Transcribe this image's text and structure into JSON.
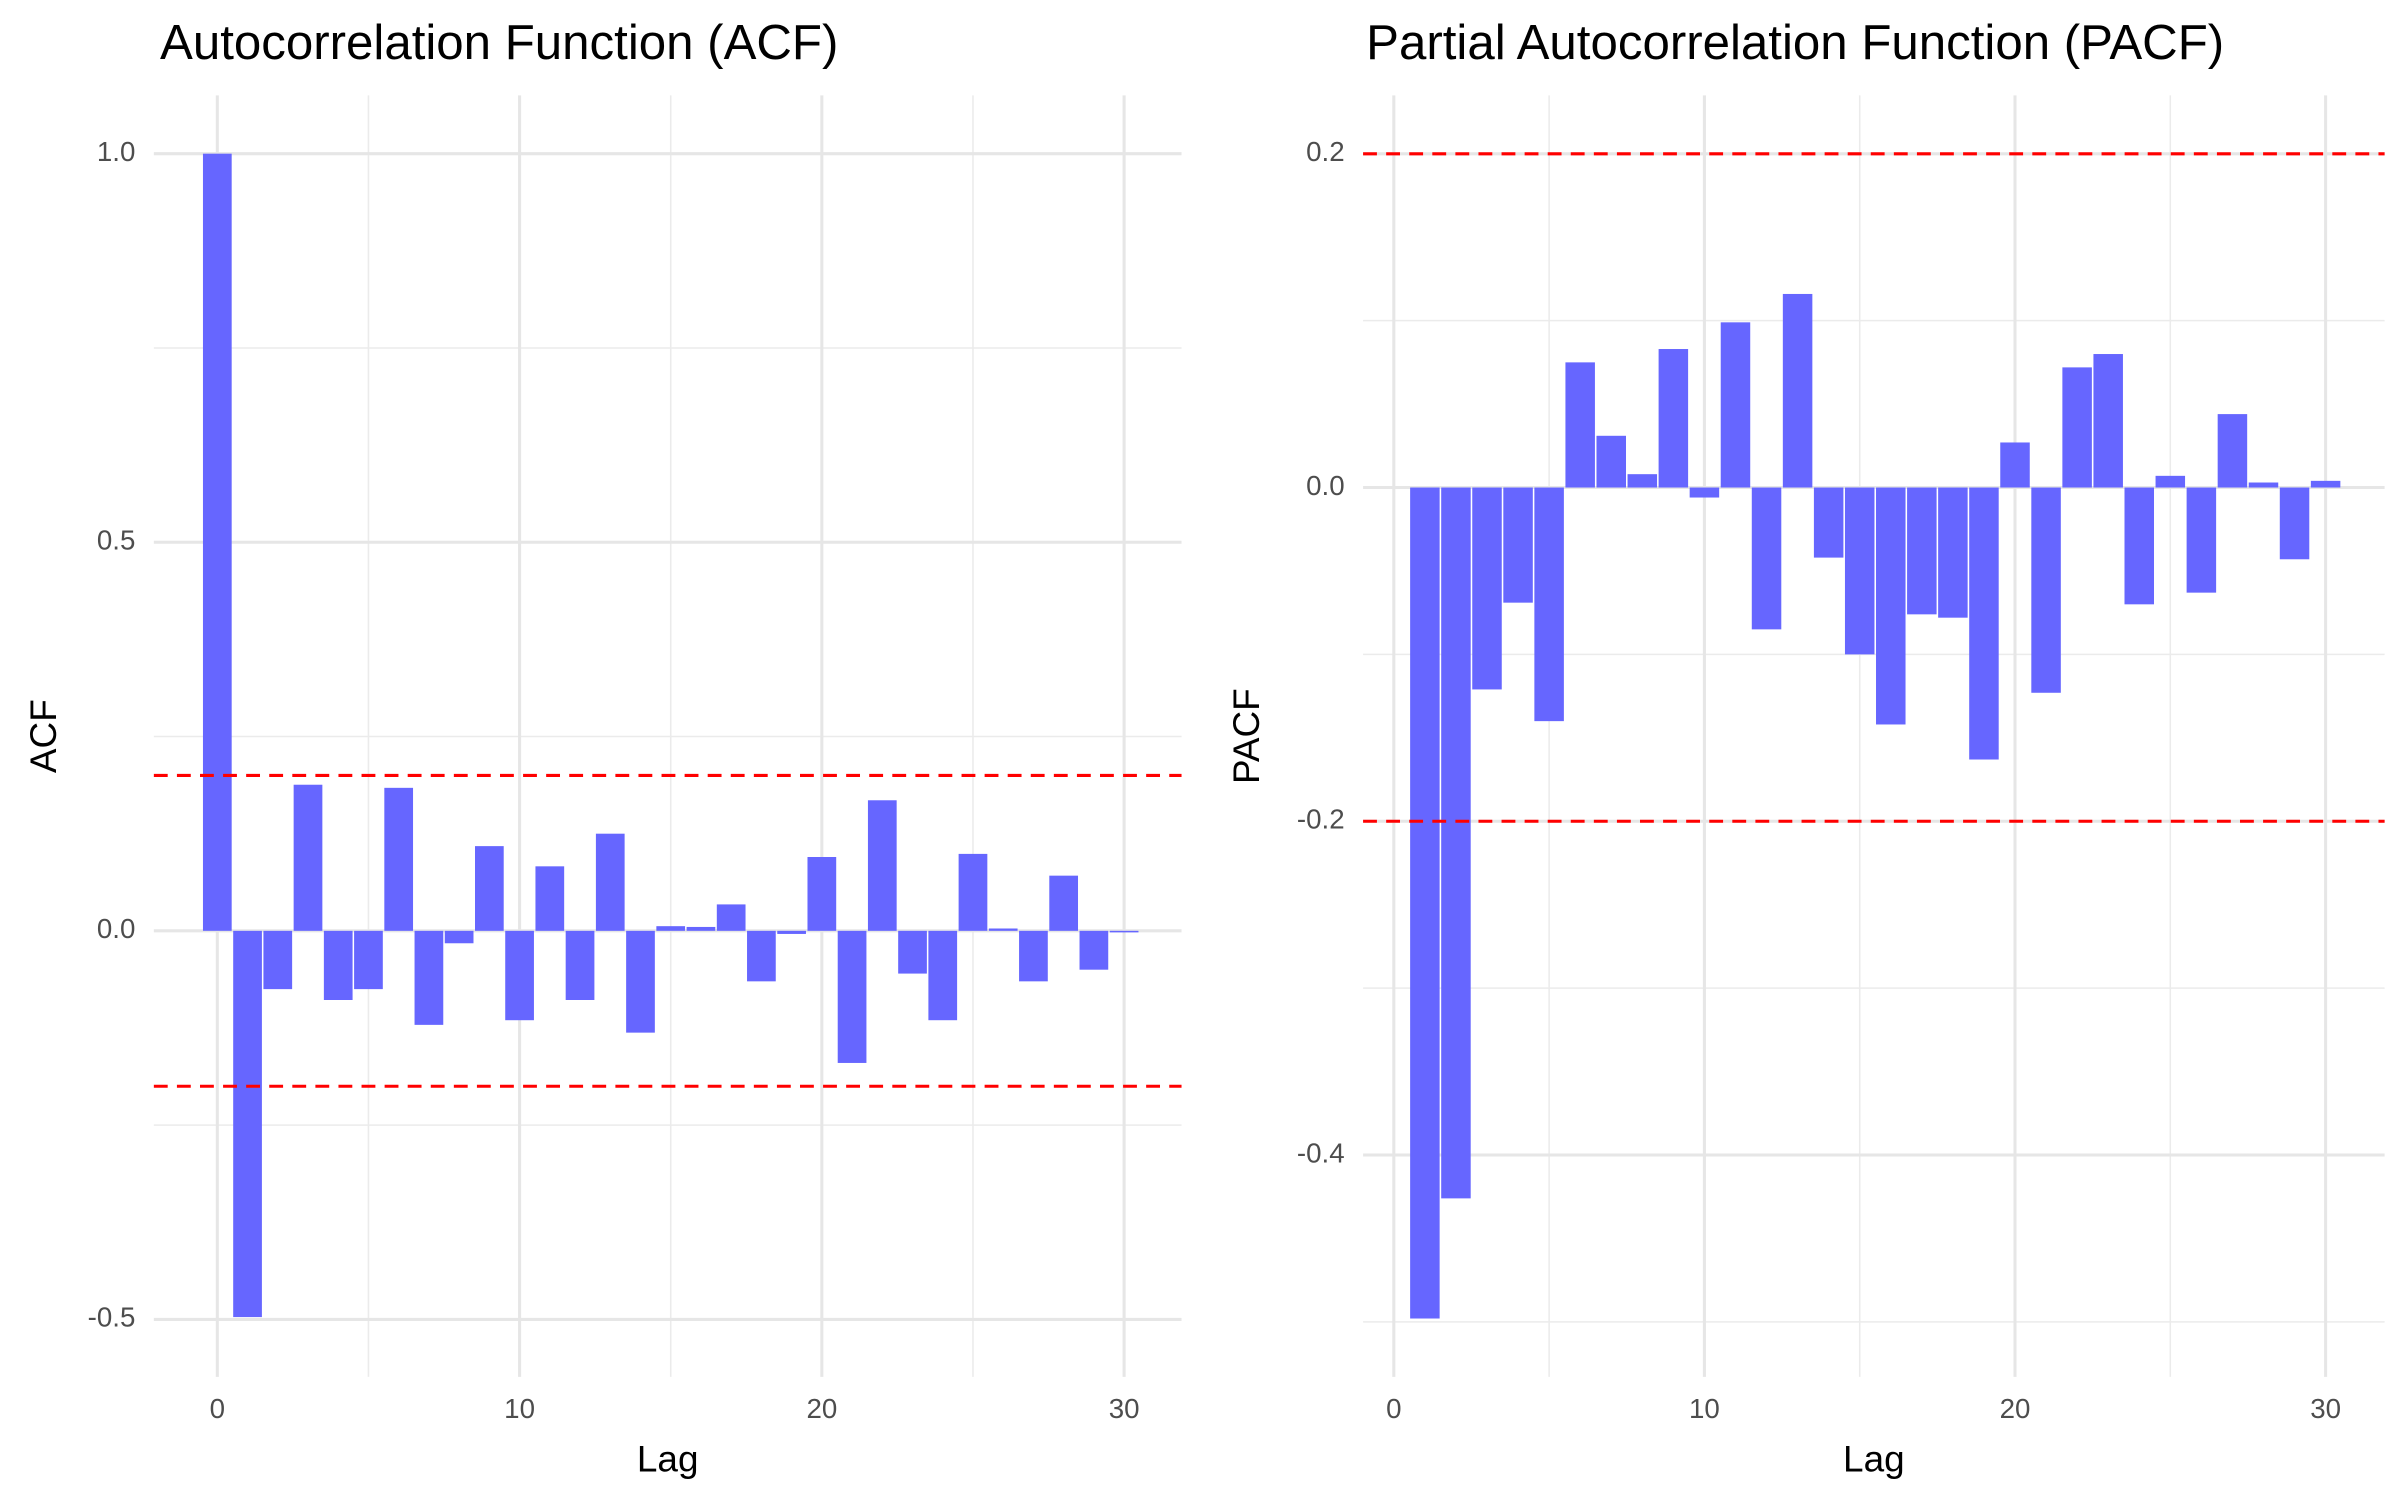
{
  "chart_data": [
    {
      "type": "bar",
      "title": "Autocorrelation Function (ACF)",
      "x_label": "Lag",
      "y_label": "ACF",
      "x": [
        0,
        1,
        2,
        3,
        4,
        5,
        6,
        7,
        8,
        9,
        10,
        11,
        12,
        13,
        14,
        15,
        16,
        17,
        18,
        19,
        20,
        21,
        22,
        23,
        24,
        25,
        26,
        27,
        28,
        29,
        30
      ],
      "values": [
        1.0,
        -0.497,
        -0.075,
        0.188,
        -0.089,
        -0.075,
        0.184,
        -0.121,
        -0.016,
        0.109,
        -0.115,
        0.083,
        -0.089,
        0.125,
        -0.131,
        0.006,
        0.005,
        0.034,
        -0.065,
        -0.004,
        0.095,
        -0.17,
        0.168,
        -0.055,
        -0.115,
        0.099,
        0.003,
        -0.065,
        0.071,
        -0.05,
        -0.002
      ],
      "color": "#6666ff",
      "xlim": [
        -2.1,
        31.9
      ],
      "xticks": [
        0,
        10,
        20,
        30
      ],
      "x_minor_grid": [
        5,
        15,
        25
      ],
      "ylim": [
        -0.574,
        1.075
      ],
      "yticks": [
        -0.5,
        {
          "value": 0,
          "label": "0.0"
        },
        0.5,
        {
          "value": 1,
          "label": "1.0"
        }
      ],
      "y_minor_grid": [
        -0.25,
        0.25,
        0.75
      ],
      "ci_lines": [
        0.2,
        -0.2
      ],
      "ci_color": "#ff0000",
      "grid": true
    },
    {
      "type": "bar",
      "title": "Partial Autocorrelation Function (PACF)",
      "x_label": "Lag",
      "y_label": "PACF",
      "x": [
        1,
        2,
        3,
        4,
        5,
        6,
        7,
        8,
        9,
        10,
        11,
        12,
        13,
        14,
        15,
        16,
        17,
        18,
        19,
        20,
        21,
        22,
        23,
        24,
        25,
        26,
        27,
        28,
        29,
        30
      ],
      "values": [
        -0.498,
        -0.426,
        -0.121,
        -0.069,
        -0.14,
        0.075,
        0.031,
        0.008,
        0.083,
        -0.006,
        0.099,
        -0.085,
        0.116,
        -0.042,
        -0.1,
        -0.142,
        -0.076,
        -0.078,
        -0.163,
        0.027,
        -0.123,
        0.072,
        0.08,
        -0.07,
        0.007,
        -0.063,
        0.044,
        0.003,
        -0.043,
        0.004
      ],
      "color": "#6666ff",
      "xlim": [
        -0.99,
        31.9
      ],
      "xticks": [
        0,
        10,
        20,
        30
      ],
      "x_minor_grid": [
        5,
        15,
        25
      ],
      "ylim": [
        -0.533,
        0.235
      ],
      "yticks": [
        -0.4,
        -0.2,
        {
          "value": 0,
          "label": "0.0"
        },
        0.2
      ],
      "y_minor_grid": [
        -0.5,
        -0.3,
        -0.1,
        0.1
      ],
      "ci_lines": [
        0.2,
        -0.2
      ],
      "ci_color": "#ff0000",
      "grid": true
    }
  ]
}
